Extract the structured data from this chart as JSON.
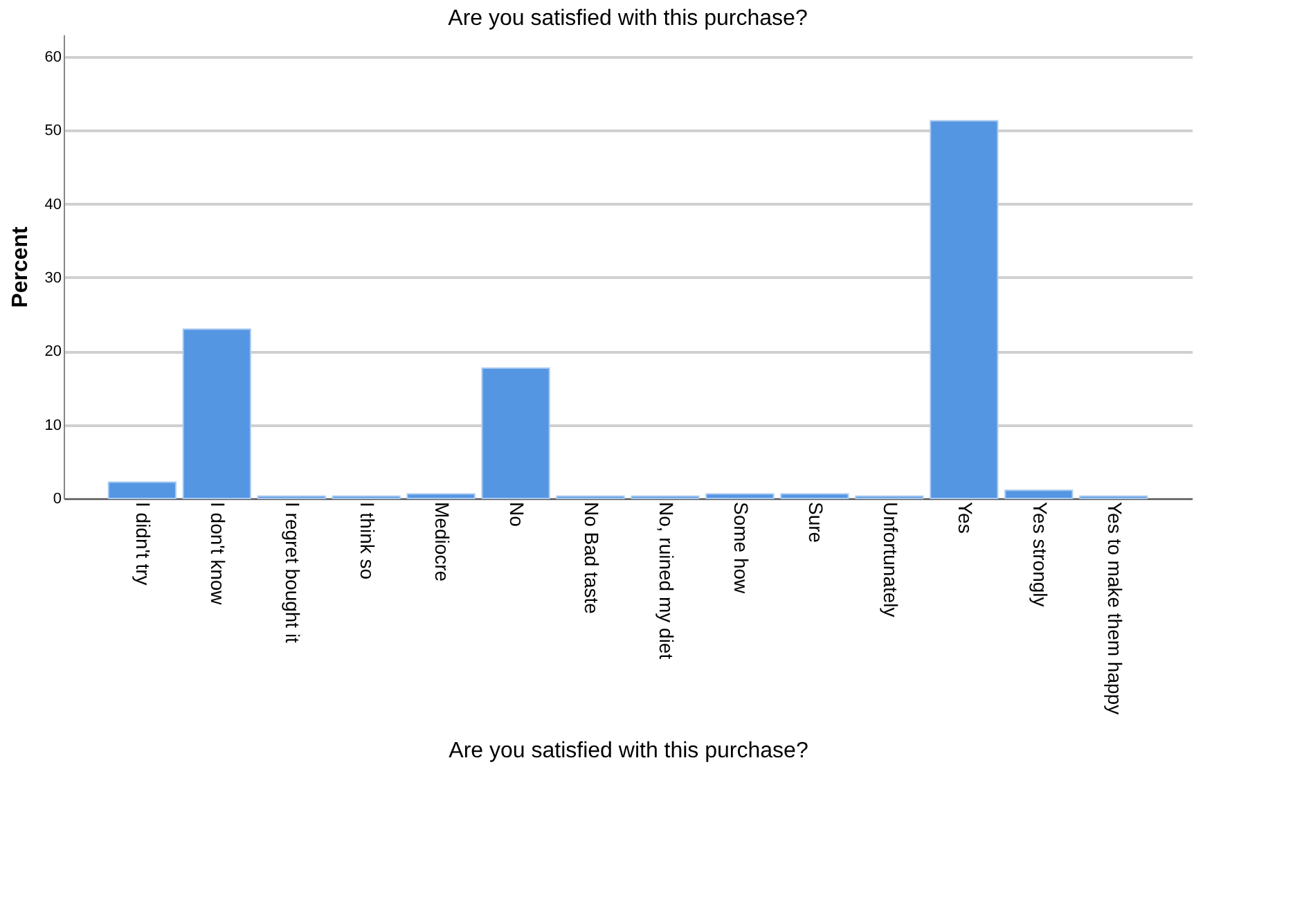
{
  "chart_data": {
    "type": "bar",
    "title": "Are you satisfied with this purchase?",
    "xlabel": "Are you satisfied with this purchase?",
    "ylabel": "Percent",
    "categories": [
      "I didn't try",
      "I don't know",
      "I regret bought it",
      "I think so",
      "Mediocre",
      "No",
      "No Bad taste",
      "No, ruined my diet",
      "Some how",
      "Sure",
      "Unfortunately",
      "Yes",
      "Yes strongly",
      "Yes to make them happy"
    ],
    "values": [
      2.2,
      23.0,
      0.3,
      0.3,
      0.6,
      17.7,
      0.3,
      0.3,
      0.6,
      0.6,
      0.3,
      51.3,
      1.1,
      0.3
    ],
    "color": "#5596e3",
    "ylim": [
      0,
      63
    ],
    "yticks": [
      0,
      10,
      20,
      30,
      40,
      50,
      60
    ],
    "grid": "y"
  }
}
